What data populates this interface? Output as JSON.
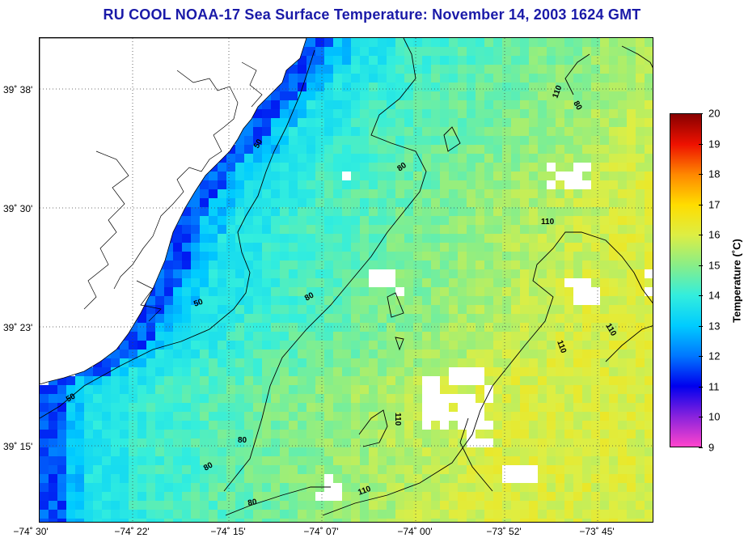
{
  "title": "RU COOL  NOAA-17  Sea Surface Temperature:  November 14, 2003 1624 GMT",
  "latitude_labels": [
    "39˚ 38'",
    "39˚ 30'",
    "39˚ 23'",
    "39˚ 15'"
  ],
  "longitude_labels": [
    "−74˚ 30'",
    "−74˚ 22'",
    "−74˚ 15'",
    "−74˚ 07'",
    "−74˚ 00'",
    "−73˚ 52'",
    "−73˚ 45'"
  ],
  "colorbar": {
    "label": "Temperature (˚C)",
    "min": 9,
    "max": 20,
    "ticks": [
      "20",
      "19",
      "18",
      "17",
      "16",
      "15",
      "14",
      "13",
      "12",
      "11",
      "10",
      "9"
    ],
    "colors": [
      "#ff44cc",
      "#8822dd",
      "#0000ee",
      "#0077ff",
      "#00ccff",
      "#33eedd",
      "#88ee88",
      "#ddee44",
      "#ffdd00",
      "#ff8800",
      "#ee1100",
      "#880000"
    ]
  },
  "contour_labels": [
    "50",
    "50",
    "50",
    "80",
    "80",
    "80",
    "80",
    "80",
    "110",
    "110",
    "110",
    "110",
    "110",
    "110",
    "80"
  ],
  "colors": {
    "land": "#ffffff",
    "coastline": "#000000",
    "title": "#1a1aa8",
    "cloud": "#ffffff"
  }
}
